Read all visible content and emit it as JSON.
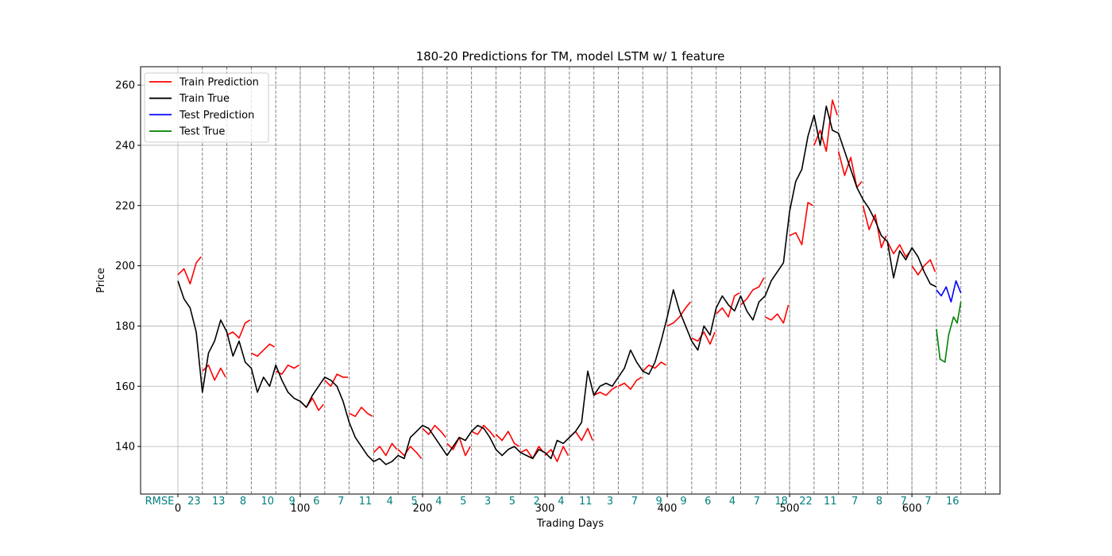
{
  "chart_data": {
    "type": "line",
    "title": "180-20 Predictions for TM, model LSTM w/ 1 feature",
    "x_label": "Trading Days",
    "y_label": "Price",
    "xlim": [
      -30.5,
      672
    ],
    "ylim": [
      124.2,
      266.1
    ],
    "xticks": [
      0,
      100,
      200,
      300,
      400,
      500,
      600
    ],
    "yticks": [
      140,
      160,
      180,
      200,
      220,
      240,
      260
    ],
    "grid": true,
    "legend": "upper left",
    "vlines": [
      20,
      40,
      60,
      80,
      100,
      120,
      140,
      160,
      180,
      200,
      220,
      240,
      260,
      280,
      300,
      320,
      340,
      360,
      380,
      400,
      420,
      440,
      460,
      480,
      500,
      520,
      540,
      560,
      580,
      600,
      620,
      640,
      660
    ],
    "vline_color": "#808080",
    "rmse_label": "RMSE",
    "rmse_color": "#008080",
    "rmse_x": [
      10,
      30,
      50,
      70,
      90,
      110,
      130,
      150,
      170,
      190,
      210,
      230,
      250,
      270,
      290,
      310,
      330,
      350,
      370,
      390,
      410,
      430,
      450,
      470,
      490,
      510,
      530,
      550,
      570,
      590,
      610,
      630
    ],
    "rmse": [
      23,
      13,
      8,
      10,
      9,
      6,
      7,
      11,
      4,
      5,
      4,
      5,
      3,
      5,
      2,
      4,
      11,
      3,
      7,
      9,
      9,
      6,
      4,
      7,
      18,
      22,
      11,
      7,
      8,
      7,
      7,
      16
    ],
    "series": [
      {
        "name": "Train Prediction",
        "color": "#ff0000",
        "x": [
          0,
          5,
          10,
          15,
          19,
          20,
          20,
          25,
          30,
          35,
          39,
          40,
          40,
          45,
          50,
          55,
          59,
          60,
          60,
          65,
          70,
          75,
          79,
          80,
          80,
          85,
          90,
          95,
          99,
          100,
          100,
          105,
          110,
          115,
          119,
          120,
          120,
          125,
          130,
          135,
          139,
          140,
          140,
          145,
          150,
          155,
          159,
          160,
          160,
          165,
          170,
          175,
          179,
          180,
          180,
          185,
          190,
          195,
          199,
          200,
          200,
          205,
          210,
          215,
          219,
          220,
          220,
          225,
          230,
          235,
          239,
          240,
          240,
          245,
          250,
          255,
          259,
          260,
          260,
          265,
          270,
          275,
          279,
          280,
          280,
          285,
          290,
          295,
          299,
          300,
          300,
          305,
          310,
          315,
          319,
          320,
          320,
          325,
          330,
          335,
          339,
          340,
          340,
          345,
          350,
          355,
          359,
          360,
          360,
          365,
          370,
          375,
          379,
          380,
          380,
          385,
          390,
          395,
          399,
          400,
          400,
          405,
          410,
          415,
          419,
          420,
          420,
          425,
          430,
          435,
          439,
          440,
          440,
          445,
          450,
          455,
          459,
          460,
          460,
          465,
          470,
          475,
          479,
          480,
          480,
          485,
          490,
          495,
          499,
          500,
          500,
          505,
          510,
          515,
          519,
          520,
          520,
          525,
          530,
          535,
          539,
          540,
          540,
          545,
          550,
          555,
          559,
          560,
          560,
          565,
          570,
          575,
          579,
          580,
          580,
          585,
          590,
          595,
          599,
          600,
          600,
          605,
          610,
          615,
          619
        ],
        "values": [
          197,
          199,
          194,
          201,
          203,
          null,
          165,
          167,
          162,
          166,
          163,
          null,
          177,
          178,
          176,
          181,
          182,
          null,
          171,
          170,
          172,
          174,
          173,
          null,
          165,
          164,
          167,
          166,
          167,
          null,
          155,
          153,
          156,
          152,
          154,
          null,
          162,
          160,
          164,
          163,
          163,
          null,
          151,
          150,
          153,
          151,
          150,
          null,
          138,
          140,
          137,
          141,
          139,
          null,
          139,
          137,
          140,
          138,
          136,
          null,
          146,
          144,
          147,
          145,
          143,
          null,
          141,
          139,
          143,
          137,
          140,
          null,
          145,
          144,
          147,
          145,
          143,
          null,
          144,
          142,
          145,
          141,
          140,
          null,
          138,
          139,
          136,
          140,
          138,
          null,
          137,
          139,
          135,
          140,
          137,
          null,
          143,
          145,
          142,
          146,
          142,
          null,
          157,
          158,
          157,
          159,
          160,
          null,
          160,
          161,
          159,
          162,
          163,
          null,
          165,
          167,
          166,
          168,
          167,
          null,
          180,
          181,
          183,
          186,
          188,
          null,
          176,
          175,
          178,
          174,
          178,
          null,
          184,
          186,
          183,
          190,
          191,
          null,
          187,
          189,
          192,
          193,
          196,
          null,
          183,
          182,
          184,
          181,
          187,
          null,
          210,
          211,
          207,
          221,
          220,
          null,
          240,
          245,
          238,
          255,
          250,
          null,
          238,
          230,
          236,
          226,
          228,
          null,
          220,
          212,
          217,
          206,
          210,
          null,
          208,
          204,
          207,
          203,
          205,
          null,
          200,
          197,
          200,
          202,
          198
        ]
      },
      {
        "name": "Train True",
        "color": "#000000",
        "x": [
          0,
          5,
          10,
          15,
          20,
          25,
          30,
          35,
          40,
          45,
          50,
          55,
          60,
          65,
          70,
          75,
          80,
          85,
          90,
          95,
          100,
          105,
          110,
          115,
          120,
          125,
          130,
          135,
          140,
          145,
          150,
          155,
          160,
          165,
          170,
          175,
          180,
          185,
          190,
          195,
          200,
          205,
          210,
          215,
          220,
          225,
          230,
          235,
          240,
          245,
          250,
          255,
          260,
          265,
          270,
          275,
          280,
          285,
          290,
          295,
          300,
          305,
          310,
          315,
          320,
          325,
          330,
          335,
          340,
          345,
          350,
          355,
          360,
          365,
          370,
          375,
          380,
          385,
          390,
          395,
          400,
          405,
          410,
          415,
          420,
          425,
          430,
          435,
          440,
          445,
          450,
          455,
          460,
          465,
          470,
          475,
          480,
          485,
          490,
          495,
          500,
          505,
          510,
          515,
          520,
          525,
          530,
          535,
          540,
          545,
          550,
          555,
          560,
          565,
          570,
          575,
          580,
          585,
          590,
          595,
          600,
          605,
          610,
          615,
          620
        ],
        "values": [
          195,
          189,
          186,
          178,
          158,
          171,
          175,
          182,
          178,
          170,
          175,
          168,
          166,
          158,
          163,
          160,
          167,
          162,
          158,
          156,
          155,
          153,
          157,
          160,
          163,
          162,
          160,
          155,
          148,
          143,
          140,
          137,
          135,
          136,
          134,
          135,
          137,
          136,
          143,
          145,
          147,
          146,
          143,
          140,
          137,
          140,
          143,
          142,
          145,
          147,
          146,
          143,
          139,
          137,
          139,
          140,
          138,
          137,
          136,
          139,
          138,
          136,
          142,
          141,
          143,
          145,
          148,
          165,
          157,
          160,
          161,
          160,
          163,
          166,
          172,
          168,
          165,
          164,
          168,
          175,
          183,
          192,
          185,
          180,
          175,
          172,
          180,
          177,
          186,
          190,
          187,
          185,
          190,
          185,
          182,
          188,
          190,
          195,
          198,
          201,
          218,
          228,
          232,
          243,
          250,
          240,
          253,
          245,
          244,
          238,
          232,
          226,
          222,
          219,
          215,
          210,
          208,
          196,
          205,
          202,
          206,
          203,
          198,
          194,
          193
        ]
      },
      {
        "name": "Test Prediction",
        "color": "#0000ff",
        "x": [
          620,
          624,
          628,
          632,
          636,
          640
        ],
        "values": [
          192,
          190,
          193,
          188,
          195,
          191
        ]
      },
      {
        "name": "Test True",
        "color": "#008000",
        "x": [
          620,
          623,
          627,
          630,
          634,
          637,
          640
        ],
        "values": [
          179,
          169,
          168,
          177,
          183,
          181,
          188
        ]
      }
    ]
  }
}
